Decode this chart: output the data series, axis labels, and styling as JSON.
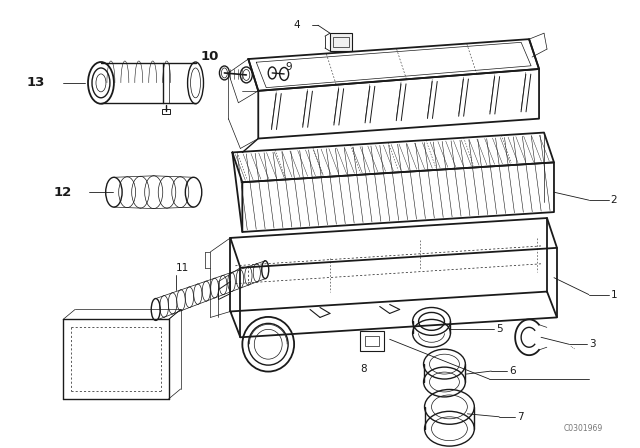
{
  "bg_color": "#ffffff",
  "line_color": "#1a1a1a",
  "fig_width": 6.4,
  "fig_height": 4.48,
  "dpi": 100,
  "watermark": "C0301969",
  "label_fs": 7.5,
  "bold_label_fs": 9.5
}
